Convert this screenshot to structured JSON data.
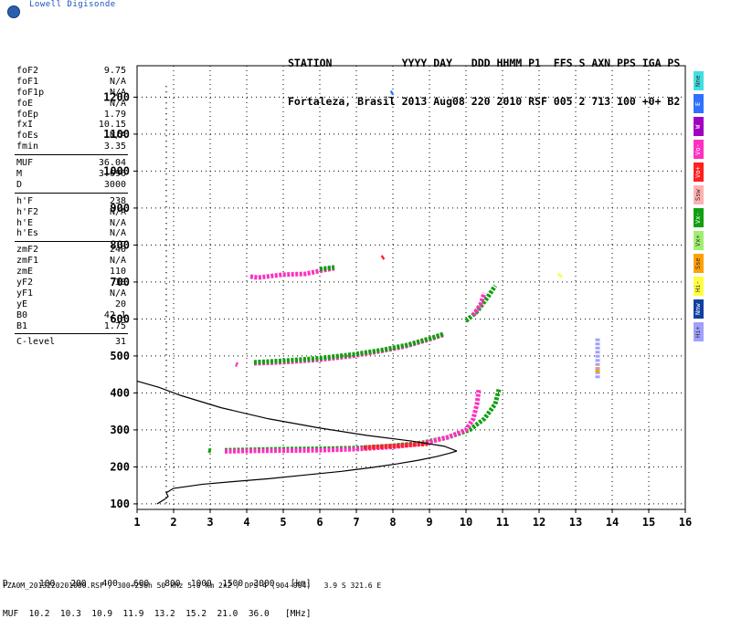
{
  "logo_text": "Lowell Digisonde",
  "header": {
    "line1": "STATION           YYYY DAY   DDD HHMM P1  FFS S AXN PPS IGA PS",
    "line2": "Fortaleza, Brasil 2013 Aug08 220 2010 RSF 005 2 713 100 +0+ B2"
  },
  "params_groups": [
    [
      [
        "foF2",
        "9.75"
      ],
      [
        "foF1",
        "N/A"
      ],
      [
        "foF1p",
        "N/A"
      ],
      [
        "foE",
        "N/A"
      ],
      [
        "foEp",
        "1.79"
      ],
      [
        "fxI",
        "10.15"
      ],
      [
        "foEs",
        "N/A"
      ],
      [
        "fmin",
        "3.35"
      ]
    ],
    [
      [
        "MUF",
        "36.04"
      ],
      [
        "M",
        "3.696"
      ],
      [
        "D",
        "3000"
      ]
    ],
    [
      [
        "h'F",
        "238"
      ],
      [
        "h'F2",
        "N/A"
      ],
      [
        "h'E",
        "N/A"
      ],
      [
        "h'Es",
        "N/A"
      ]
    ],
    [
      [
        "zmF2",
        "240"
      ],
      [
        "zmF1",
        "N/A"
      ],
      [
        "zmE",
        "110"
      ],
      [
        "yF2",
        "38"
      ],
      [
        "yF1",
        "N/A"
      ],
      [
        "yE",
        "20"
      ],
      [
        "B0",
        "42.1"
      ],
      [
        "B1",
        "1.75"
      ]
    ],
    [
      [
        "C-level",
        "31"
      ]
    ]
  ],
  "legend": [
    {
      "label": "Nne",
      "color": "#40e0e0"
    },
    {
      "label": "E",
      "color": "#3070ff"
    },
    {
      "label": "W",
      "color": "#a000c0"
    },
    {
      "label": "Vo-",
      "color": "#ff30c0"
    },
    {
      "label": "Vo+",
      "color": "#ff2020"
    },
    {
      "label": "Ssw",
      "color": "#ffb0b0"
    },
    {
      "label": "Vx-",
      "color": "#10a010"
    },
    {
      "label": "Vx+",
      "color": "#a0f070"
    },
    {
      "label": "Sse",
      "color": "#ffa000"
    },
    {
      "label": "Hi-",
      "color": "#ffff40"
    },
    {
      "label": "Nnw",
      "color": "#1040a0"
    },
    {
      "label": "Hi+",
      "color": "#a0a0ff"
    }
  ],
  "footer": {
    "d_row": "D      100   200   400   600   800  1000  1500  3000   [km]",
    "muf_row": "MUF  10.2  10.3  10.9  11.9  13.2  15.2  21.0  36.0   [MHz]",
    "file_line": "FZA0M_2013220201000.RSF / 300+256h 50 kHz 5.0 km 2x2 / DPS-4 (904-904)   3.9 S 321.6 E"
  },
  "chart_data": {
    "type": "scatter",
    "xlim": [
      1,
      16
    ],
    "ylim": [
      85,
      1285
    ],
    "xticks": [
      1,
      2,
      3,
      4,
      5,
      6,
      7,
      8,
      9,
      10,
      11,
      12,
      13,
      14,
      15,
      16
    ],
    "yticks": [
      100,
      200,
      300,
      400,
      500,
      600,
      700,
      800,
      900,
      1000,
      1100,
      1200
    ],
    "grid": true,
    "traces": [
      {
        "name": "Vx-",
        "color": "#10a010",
        "kind": "band",
        "points": [
          [
            3.4,
            245
          ],
          [
            4,
            246
          ],
          [
            5,
            248
          ],
          [
            6,
            249
          ],
          [
            7,
            251
          ],
          [
            8,
            257
          ],
          [
            8.8,
            265
          ],
          [
            9.5,
            280
          ],
          [
            10.1,
            300
          ],
          [
            10.5,
            330
          ],
          [
            10.8,
            370
          ],
          [
            10.9,
            410
          ]
        ]
      },
      {
        "name": "Vo-",
        "color": "#ff30c0",
        "kind": "band",
        "points": [
          [
            3.4,
            242
          ],
          [
            4,
            243
          ],
          [
            5,
            244
          ],
          [
            6,
            245
          ],
          [
            7,
            248
          ],
          [
            8,
            254
          ],
          [
            8.8,
            263
          ],
          [
            9.5,
            280
          ],
          [
            10,
            300
          ],
          [
            10.2,
            330
          ],
          [
            10.3,
            370
          ],
          [
            10.35,
            410
          ]
        ]
      },
      {
        "name": "Vo+",
        "color": "#ff2020",
        "kind": "band",
        "points": [
          [
            7.2,
            252
          ],
          [
            7.8,
            255
          ],
          [
            8.4,
            259
          ],
          [
            9,
            263
          ]
        ]
      },
      {
        "name": "Vo- multi",
        "color": "#ff30c0",
        "kind": "band",
        "points": [
          [
            4.2,
            480
          ],
          [
            5,
            483
          ],
          [
            6,
            490
          ],
          [
            6.9,
            500
          ],
          [
            7.6,
            512
          ],
          [
            8.3,
            525
          ],
          [
            9.0,
            545
          ],
          [
            9.4,
            558
          ]
        ]
      },
      {
        "name": "Vx- multi",
        "color": "#10a010",
        "kind": "band",
        "points": [
          [
            4.2,
            483
          ],
          [
            5,
            487
          ],
          [
            6,
            494
          ],
          [
            6.9,
            504
          ],
          [
            7.7,
            516
          ],
          [
            8.4,
            530
          ],
          [
            9.1,
            550
          ],
          [
            9.4,
            560
          ]
        ]
      },
      {
        "name": "Vx- high",
        "color": "#10a010",
        "kind": "band",
        "points": [
          [
            10,
            595
          ],
          [
            10.3,
            620
          ],
          [
            10.6,
            660
          ],
          [
            10.8,
            690
          ]
        ]
      },
      {
        "name": "Vo- high",
        "color": "#ff30c0",
        "kind": "band",
        "points": [
          [
            10.2,
            610
          ],
          [
            10.4,
            640
          ],
          [
            10.5,
            670
          ]
        ]
      },
      {
        "name": "Vo- 3rd",
        "color": "#ff30c0",
        "kind": "band",
        "points": [
          [
            4.1,
            715
          ],
          [
            4.3,
            712
          ],
          [
            5.0,
            720
          ],
          [
            5.6,
            722
          ],
          [
            6.1,
            732
          ],
          [
            6.4,
            737
          ]
        ]
      },
      {
        "name": "Vx- 3rd",
        "color": "#10a010",
        "kind": "band",
        "points": [
          [
            6.0,
            735
          ],
          [
            6.4,
            740
          ]
        ]
      },
      {
        "name": "Vo+ point",
        "color": "#ff2020",
        "kind": "band",
        "points": [
          [
            7.7,
            765
          ],
          [
            7.75,
            768
          ]
        ]
      },
      {
        "name": "Vo- sparse",
        "color": "#ff30c0",
        "kind": "band",
        "points": [
          [
            3.7,
            478
          ],
          [
            3.75,
            476
          ]
        ]
      },
      {
        "name": "Hi+",
        "color": "#a0a0ff",
        "kind": "band",
        "points": [
          [
            13.6,
            440
          ],
          [
            13.6,
            550
          ]
        ]
      },
      {
        "name": "Sse",
        "color": "#ffa000",
        "kind": "band",
        "points": [
          [
            13.6,
            455
          ],
          [
            13.6,
            470
          ]
        ]
      },
      {
        "name": "Hi-",
        "color": "#ffff40",
        "kind": "band",
        "points": [
          [
            12.55,
            715
          ],
          [
            12.6,
            722
          ]
        ]
      },
      {
        "name": "E",
        "color": "#3070ff",
        "kind": "band",
        "points": [
          [
            7.95,
            1210
          ],
          [
            8.0,
            1213
          ]
        ]
      },
      {
        "name": "Vx- low",
        "color": "#10a010",
        "kind": "band",
        "points": [
          [
            2.95,
            245
          ],
          [
            3.05,
            243
          ]
        ]
      }
    ],
    "profile_lower": [
      [
        1.55,
        100
      ],
      [
        1.75,
        112
      ],
      [
        1.85,
        120
      ],
      [
        1.8,
        130
      ],
      [
        2.0,
        142
      ],
      [
        2.8,
        153
      ],
      [
        3.6,
        160
      ],
      [
        4.6,
        168
      ],
      [
        5.6,
        178
      ],
      [
        6.6,
        188
      ],
      [
        7.4,
        198
      ],
      [
        8.1,
        208
      ],
      [
        8.7,
        218
      ],
      [
        9.2,
        228
      ],
      [
        9.55,
        237
      ],
      [
        9.75,
        243
      ]
    ],
    "profile_upper": [
      [
        9.75,
        243
      ],
      [
        9.4,
        256
      ],
      [
        8.5,
        270
      ],
      [
        7.3,
        285
      ],
      [
        6,
        305
      ],
      [
        4.6,
        330
      ],
      [
        3.3,
        360
      ],
      [
        2.2,
        393
      ],
      [
        1.6,
        415
      ],
      [
        1.0,
        432
      ]
    ],
    "dashed_vline_x": 1.8,
    "dashed_vline_yrange": [
      100,
      1230
    ]
  }
}
